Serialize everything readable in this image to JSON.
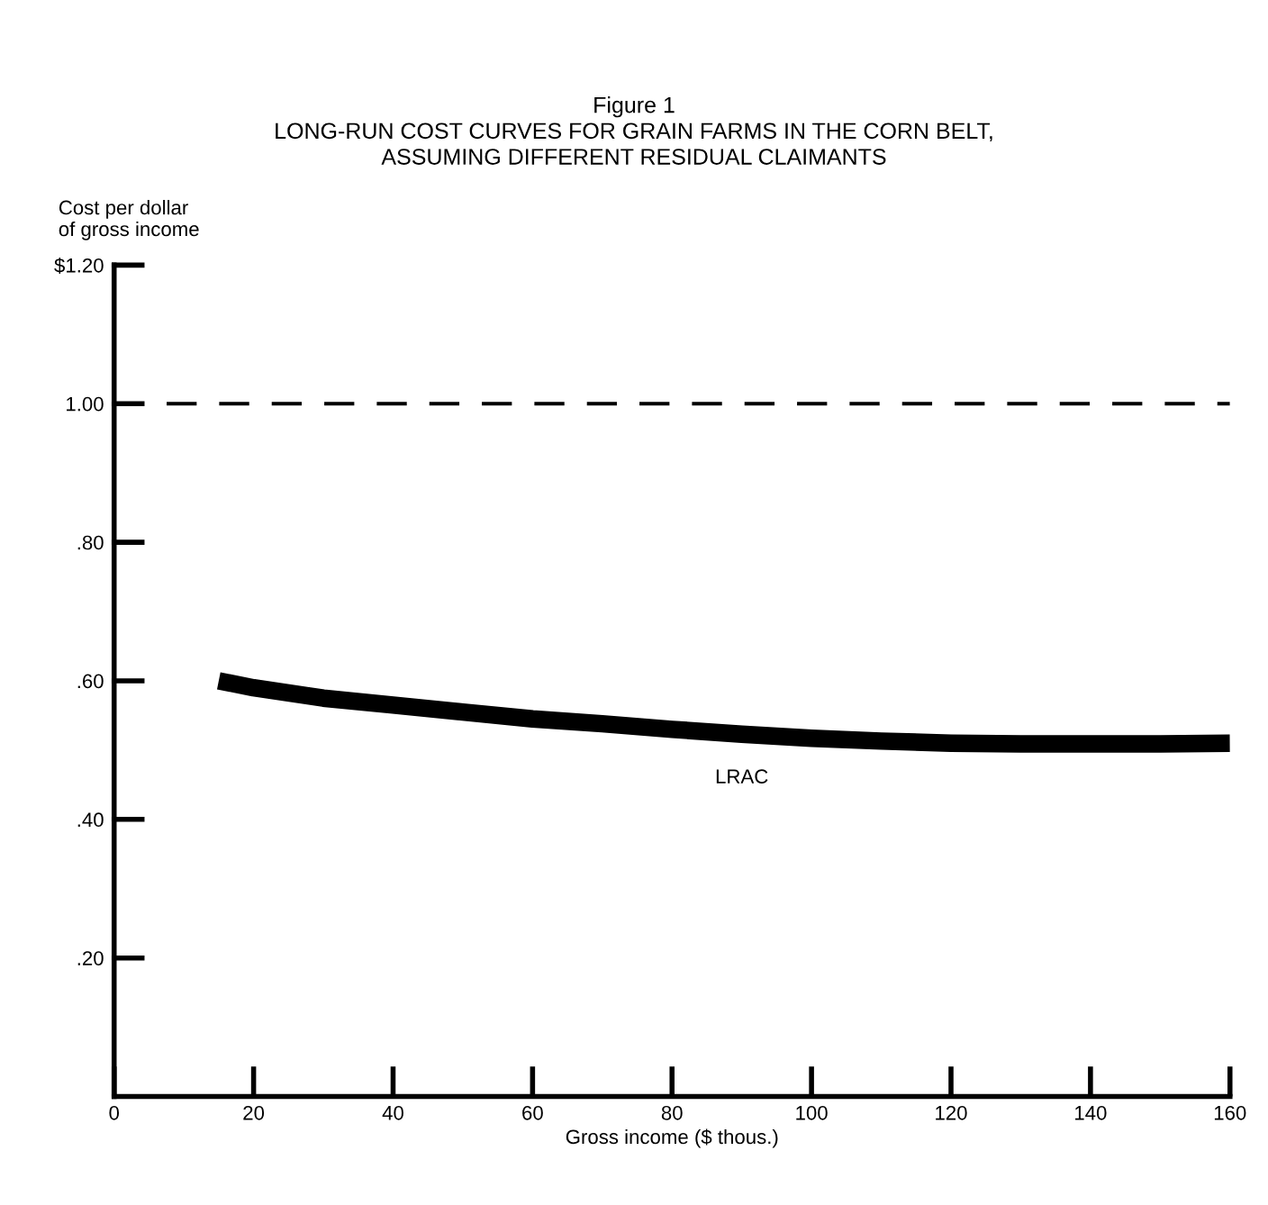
{
  "chart_data": {
    "type": "line",
    "title": "Figure 1\nLONG-RUN COST CURVES FOR GRAIN FARMS IN THE CORN BELT,\nASSUMING DIFFERENT RESIDUAL CLAIMANTS",
    "xlabel": "Gross income ($ thous.)",
    "ylabel": "Cost per dollar\nof gross income",
    "x": [
      15,
      20,
      30,
      40,
      50,
      60,
      70,
      80,
      90,
      100,
      110,
      120,
      130,
      140,
      150,
      160
    ],
    "series": [
      {
        "name": "LRAC",
        "color": "#000000",
        "values": [
          0.6,
          0.59,
          0.575,
          0.565,
          0.555,
          0.545,
          0.538,
          0.53,
          0.523,
          0.517,
          0.513,
          0.51,
          0.509,
          0.509,
          0.509,
          0.51
        ]
      }
    ],
    "xlim": [
      0,
      160
    ],
    "ylim": [
      0,
      1.2
    ],
    "xticks": [
      0,
      20,
      40,
      60,
      80,
      100,
      120,
      140,
      160
    ],
    "yticks": [
      {
        "value": 0.2,
        "label": ".20"
      },
      {
        "value": 0.4,
        "label": ".40"
      },
      {
        "value": 0.6,
        "label": ".60"
      },
      {
        "value": 0.8,
        "label": ".80"
      },
      {
        "value": 1.0,
        "label": "1.00"
      },
      {
        "value": 1.2,
        "label": "$1.20"
      }
    ],
    "ref_lines": [
      {
        "axis": "y",
        "value": 1.0,
        "label": null,
        "color": "#000000",
        "line_style": "dashed"
      }
    ],
    "grid": false,
    "legend": false,
    "marker": "none",
    "line_style": "solid"
  }
}
